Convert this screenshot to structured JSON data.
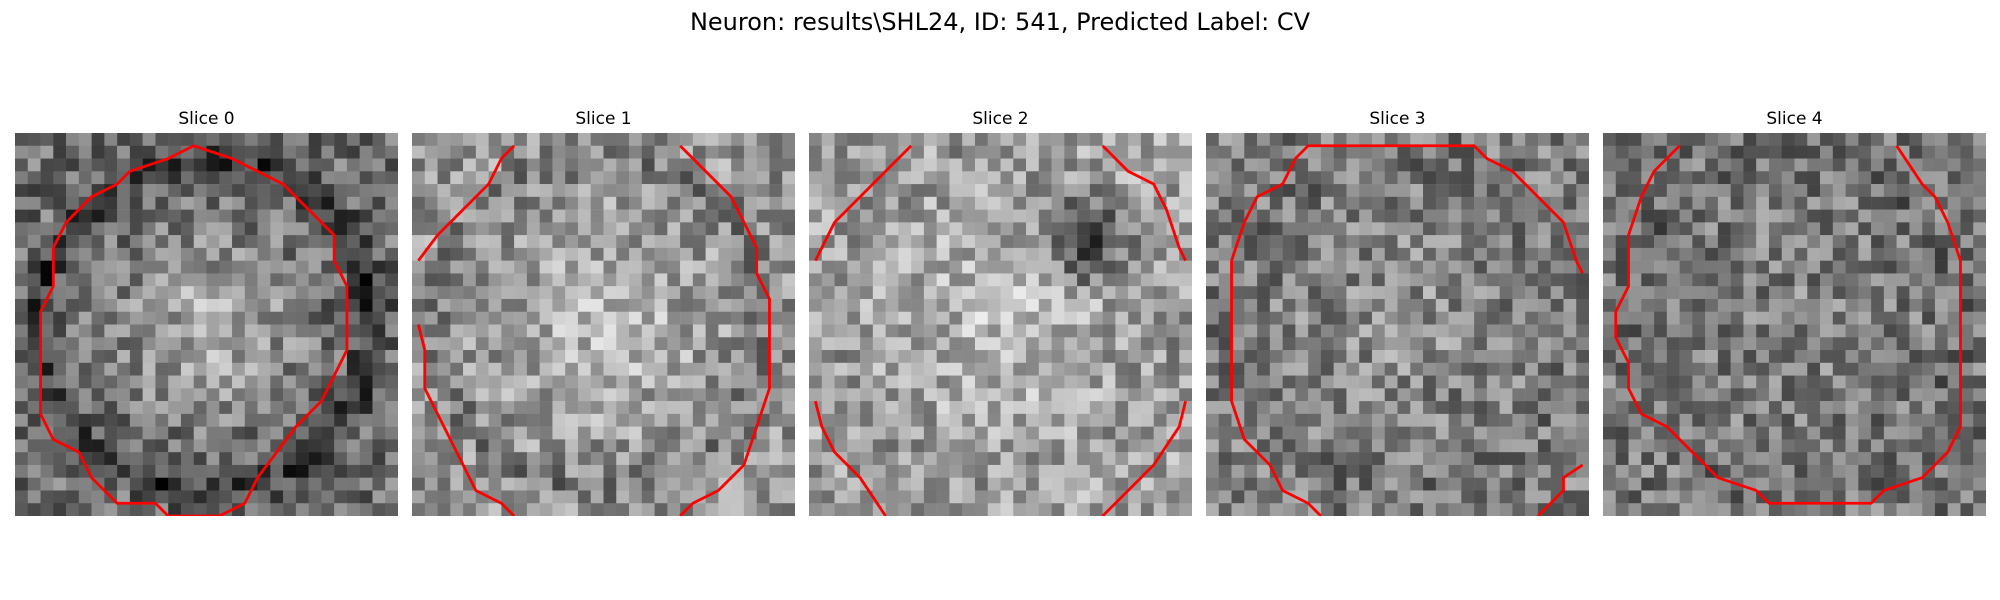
{
  "figure": {
    "title": "Neuron: results\\SHL24, ID: 541, Predicted Label: CV"
  },
  "colors": {
    "contour": "#ff0000",
    "background": "#ffffff"
  },
  "panels": [
    {
      "title": "Slice 0"
    },
    {
      "title": "Slice 1"
    },
    {
      "title": "Slice 2"
    },
    {
      "title": "Slice 3"
    },
    {
      "title": "Slice 4"
    }
  ]
}
